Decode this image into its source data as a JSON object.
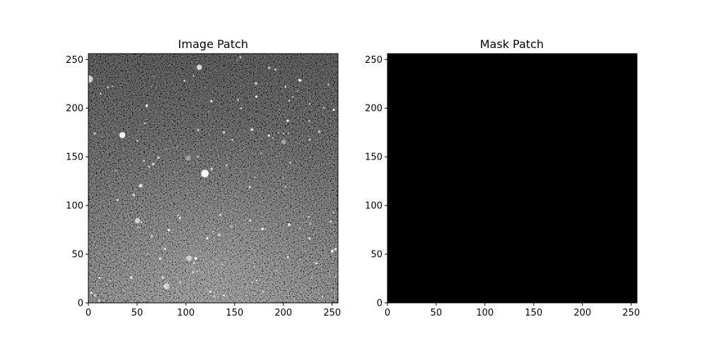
{
  "chart_data": [
    {
      "type": "heatmap",
      "title": "Image Patch",
      "colormap": "gray",
      "content": "grayscale fluorescence-like noise texture with bright speckles",
      "xlim": [
        0,
        256
      ],
      "ylim": [
        0,
        256
      ],
      "xticks": [
        0,
        50,
        100,
        150,
        200,
        250
      ],
      "yticks": [
        0,
        50,
        100,
        150,
        200,
        250
      ],
      "xlabel": "",
      "ylabel": ""
    },
    {
      "type": "heatmap",
      "title": "Mask Patch",
      "colormap": "gray",
      "values_all": 0,
      "fill_color": "#000000",
      "xlim": [
        0,
        256
      ],
      "ylim": [
        0,
        256
      ],
      "xticks": [
        0,
        50,
        100,
        150,
        200,
        250
      ],
      "yticks": [
        0,
        50,
        100,
        150,
        200,
        250
      ],
      "xlabel": "",
      "ylabel": ""
    }
  ]
}
